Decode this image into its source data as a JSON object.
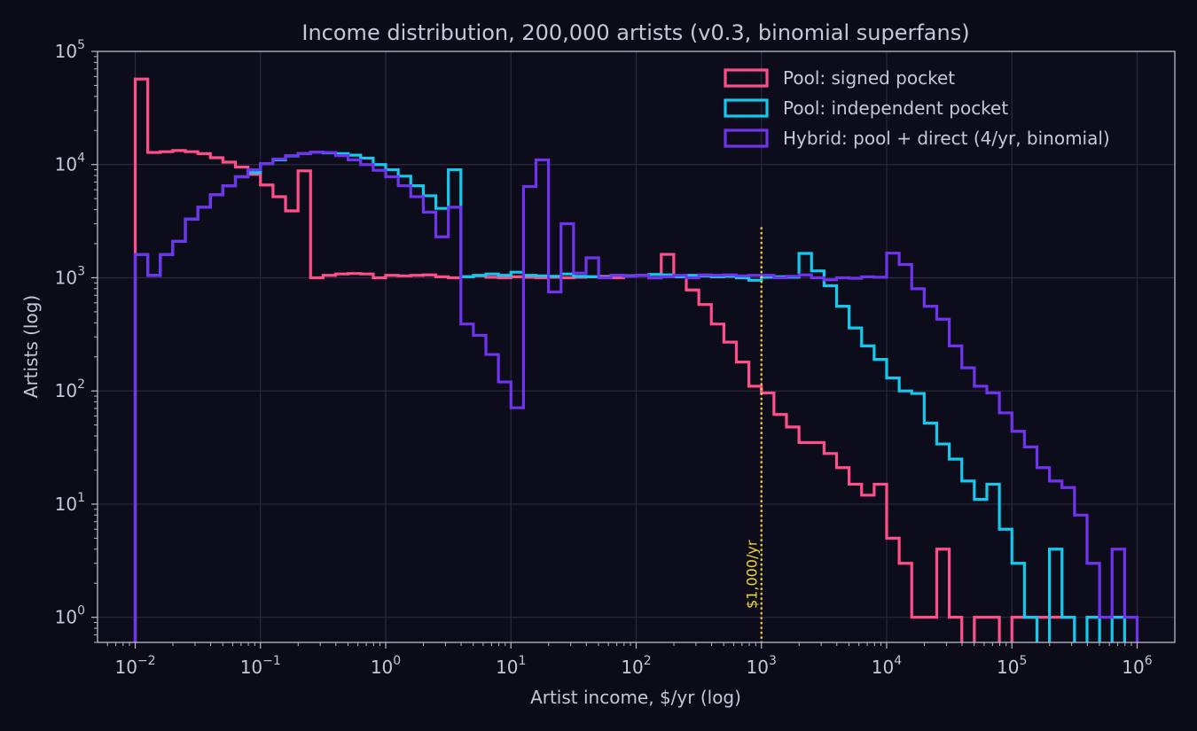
{
  "chart_data": {
    "type": "histogram-step",
    "title": "Income distribution, 200,000 artists (v0.3, binomial superfans)",
    "xlabel": "Artist income, $/yr (log)",
    "ylabel": "Artists (log)",
    "x_scale": "log",
    "y_scale": "log",
    "xlim": [
      0.005,
      2000000
    ],
    "ylim": [
      0.6,
      100000
    ],
    "grid": true,
    "legend_position": "top-right",
    "x_ticks": [
      {
        "base": "10",
        "exp": "−2",
        "value": 0.01
      },
      {
        "base": "10",
        "exp": "−1",
        "value": 0.1
      },
      {
        "base": "10",
        "exp": "0",
        "value": 1
      },
      {
        "base": "10",
        "exp": "1",
        "value": 10
      },
      {
        "base": "10",
        "exp": "2",
        "value": 100
      },
      {
        "base": "10",
        "exp": "3",
        "value": 1000
      },
      {
        "base": "10",
        "exp": "4",
        "value": 10000
      },
      {
        "base": "10",
        "exp": "5",
        "value": 100000
      },
      {
        "base": "10",
        "exp": "6",
        "value": 1000000
      }
    ],
    "y_ticks": [
      {
        "base": "10",
        "exp": "0",
        "value": 1
      },
      {
        "base": "10",
        "exp": "1",
        "value": 10
      },
      {
        "base": "10",
        "exp": "2",
        "value": 100
      },
      {
        "base": "10",
        "exp": "3",
        "value": 1000
      },
      {
        "base": "10",
        "exp": "4",
        "value": 10000
      },
      {
        "base": "10",
        "exp": "5",
        "value": 100000
      }
    ],
    "bins": {
      "min": 0.01,
      "max": 1000000,
      "count": 80
    },
    "series": [
      {
        "name": "Pool: signed pocket",
        "color": "#ff4f8b",
        "counts": [
          57000,
          12800,
          13000,
          13300,
          13000,
          12500,
          11500,
          10500,
          9500,
          8200,
          6600,
          5200,
          3900,
          8800,
          1000,
          1050,
          1080,
          1090,
          1080,
          1000,
          1050,
          1040,
          1050,
          1060,
          1020,
          1000,
          1020,
          1040,
          1010,
          1000,
          1020,
          1010,
          1000,
          1010,
          1000,
          1010,
          1020,
          1030,
          1000,
          1040,
          1050,
          1000,
          1610,
          1030,
          780,
          580,
          390,
          270,
          180,
          110,
          96,
          62,
          48,
          35,
          35,
          28,
          21,
          15,
          12,
          15,
          5,
          3,
          1,
          1,
          4,
          1,
          0,
          1,
          1,
          0,
          1,
          1,
          1,
          1,
          1,
          0,
          0,
          0,
          0,
          0
        ]
      },
      {
        "name": "Pool: independent pocket",
        "color": "#14c8ee",
        "counts": [
          1600,
          1050,
          1600,
          2100,
          3300,
          4200,
          5400,
          6500,
          7800,
          8500,
          10200,
          11000,
          11900,
          12500,
          12900,
          12700,
          12500,
          12100,
          11400,
          10000,
          9000,
          7900,
          6500,
          5300,
          4100,
          9000,
          1020,
          1050,
          1080,
          1050,
          1120,
          1050,
          1040,
          1030,
          1080,
          1030,
          1020,
          1010,
          1050,
          1040,
          1050,
          1070,
          1060,
          1020,
          1050,
          1040,
          1020,
          1030,
          1000,
          950,
          1010,
          1020,
          1010,
          1640,
          1150,
          850,
          560,
          360,
          250,
          190,
          130,
          100,
          95,
          52,
          34,
          25,
          16,
          11,
          15,
          6,
          3,
          1,
          0,
          4,
          1,
          0,
          1,
          0,
          1,
          0
        ]
      },
      {
        "name": "Hybrid: pool + direct (4/yr, binomial)",
        "color": "#7033ee",
        "counts": [
          1600,
          1050,
          1600,
          2100,
          3300,
          4200,
          5400,
          6500,
          7800,
          9000,
          10200,
          11200,
          12000,
          12500,
          12900,
          12800,
          12000,
          11000,
          10000,
          8900,
          7800,
          6500,
          5200,
          3800,
          2300,
          4200,
          390,
          310,
          210,
          120,
          71,
          6400,
          11000,
          750,
          3000,
          1100,
          1500,
          1000,
          1050,
          1030,
          1050,
          1000,
          1020,
          1050,
          1000,
          1060,
          1050,
          1060,
          1040,
          1050,
          1050,
          1000,
          1030,
          1060,
          1000,
          960,
          1000,
          990,
          1020,
          1010,
          1650,
          1310,
          800,
          560,
          430,
          250,
          160,
          110,
          96,
          64,
          44,
          32,
          21,
          16,
          14,
          8,
          3,
          1,
          4,
          1
        ]
      }
    ],
    "annotations": [
      {
        "type": "vline",
        "x": 1000,
        "y_top": 2800,
        "style": "dotted",
        "color": "#f2d43b",
        "label": "$1,000/yr"
      }
    ]
  }
}
